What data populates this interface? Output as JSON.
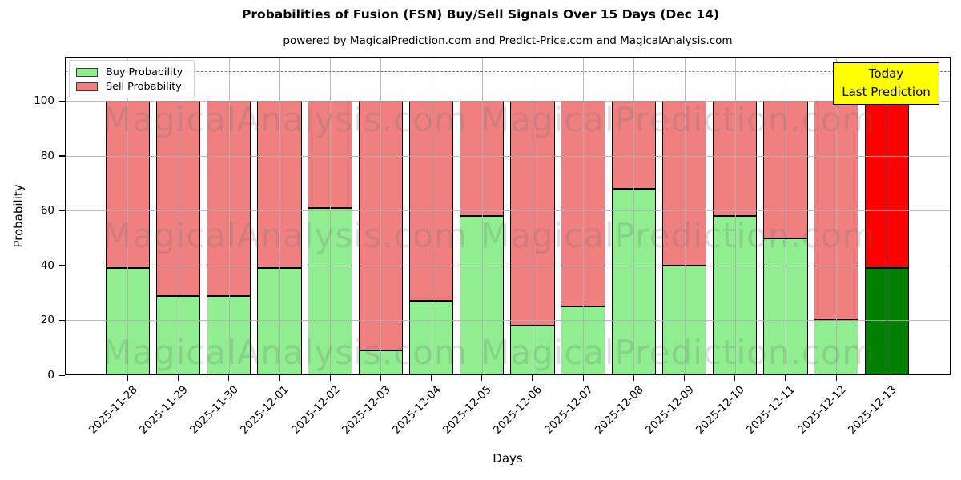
{
  "title": "Probabilities of Fusion (FSN) Buy/Sell Signals Over 15 Days (Dec 14)",
  "subtitle": "powered by MagicalPrediction.com and Predict-Price.com and MagicalAnalysis.com",
  "legend": {
    "buy_label": "Buy Probability",
    "sell_label": "Sell Probability"
  },
  "today_annotation": {
    "line1": "Today",
    "line2": "Last Prediction",
    "bg_color": "#ffff00"
  },
  "axes": {
    "xlabel": "Days",
    "ylabel": "Probability",
    "yticks": [
      0,
      20,
      40,
      60,
      80,
      100
    ]
  },
  "watermarks": {
    "left_text": "MagicalAnalysis.com",
    "right_text": "MagicalPrediction.com"
  },
  "colors": {
    "buy": "#90ee90",
    "sell": "#f08080",
    "today_buy": "#008000",
    "today_sell": "#ff0000",
    "bar_edge": "#000000",
    "grid": "#b0b0b0",
    "guideline": "#7a7a7a"
  },
  "chart_data": {
    "type": "bar",
    "stacked": true,
    "title": "Probabilities of Fusion (FSN) Buy/Sell Signals Over 15 Days (Dec 14)",
    "xlabel": "Days",
    "ylabel": "Probability",
    "categories": [
      "2025-11-28",
      "2025-11-29",
      "2025-11-30",
      "2025-12-01",
      "2025-12-02",
      "2025-12-03",
      "2025-12-04",
      "2025-12-05",
      "2025-12-06",
      "2025-12-07",
      "2025-12-08",
      "2025-12-09",
      "2025-12-10",
      "2025-12-11",
      "2025-12-12",
      "2025-12-13"
    ],
    "series": [
      {
        "name": "Buy Probability",
        "color": "#90ee90",
        "values": [
          39,
          29,
          29,
          39,
          61,
          9,
          27,
          58,
          18,
          25,
          68,
          40,
          58,
          50,
          20,
          39
        ]
      },
      {
        "name": "Sell Probability",
        "color": "#f08080",
        "values": [
          61,
          71,
          71,
          61,
          39,
          91,
          73,
          42,
          82,
          75,
          32,
          60,
          42,
          50,
          80,
          61
        ]
      }
    ],
    "highlight_last_bar": {
      "index": 15,
      "buy_color": "#008000",
      "sell_color": "#ff0000"
    },
    "ylim": [
      0,
      116
    ],
    "dashed_guideline_y": 110.5,
    "grid": true,
    "legend_position": "upper left"
  }
}
